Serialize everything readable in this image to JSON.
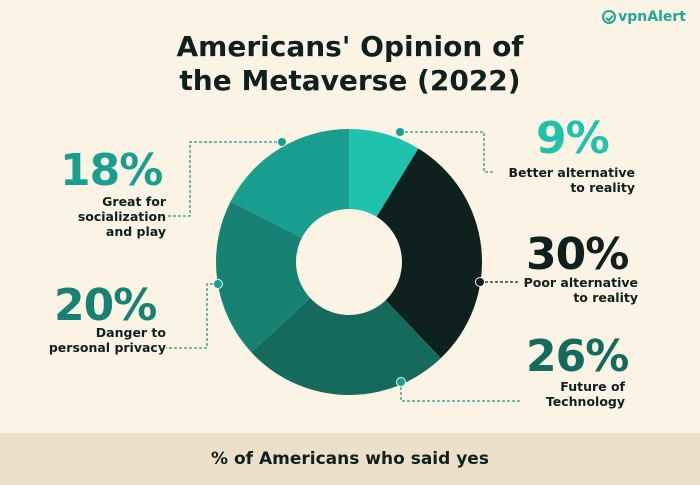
{
  "brand": {
    "logo_text": "vpnAlert"
  },
  "chart_data": {
    "type": "pie",
    "title": "Americans' Opinion of the Metaverse (2022)",
    "subtitle": "% of Americans who said yes",
    "slices": [
      {
        "label": "Better alternative to reality",
        "value": 9,
        "display": "9%",
        "color": "#1fc2ad"
      },
      {
        "label": "Poor alternative to reality",
        "value": 30,
        "display": "30%",
        "color": "#0e211e"
      },
      {
        "label": "Future of Technology",
        "value": 26,
        "display": "26%",
        "color": "#136a5d"
      },
      {
        "label": "Danger to personal privacy",
        "value": 20,
        "display": "20%",
        "color": "#178173"
      },
      {
        "label": "Great for socialization and play",
        "value": 18,
        "display": "18%",
        "color": "#1a9e8f"
      }
    ],
    "label_lines": [
      [
        "Better alternative",
        "to reality"
      ],
      [
        "Poor alternative",
        "to reality"
      ],
      [
        "Future of",
        "Technology"
      ],
      [
        "Danger to",
        "personal privacy"
      ],
      [
        "Great for",
        "socialization",
        "and play"
      ]
    ]
  }
}
